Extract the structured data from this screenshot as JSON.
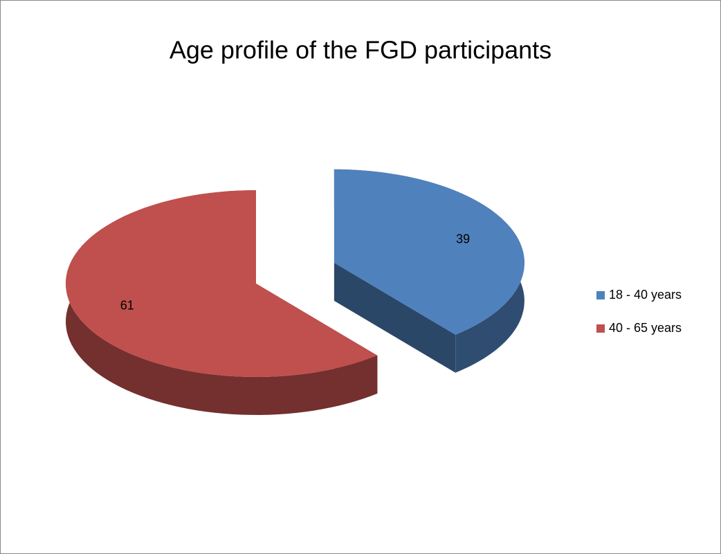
{
  "chart_data": {
    "type": "pie",
    "title": "Age profile of the FGD participants",
    "categories": [
      "18 - 40 years",
      "40 - 65 years"
    ],
    "values": [
      39,
      61
    ],
    "colors": [
      "#4f81bd",
      "#c0504d"
    ],
    "legend": "right"
  }
}
